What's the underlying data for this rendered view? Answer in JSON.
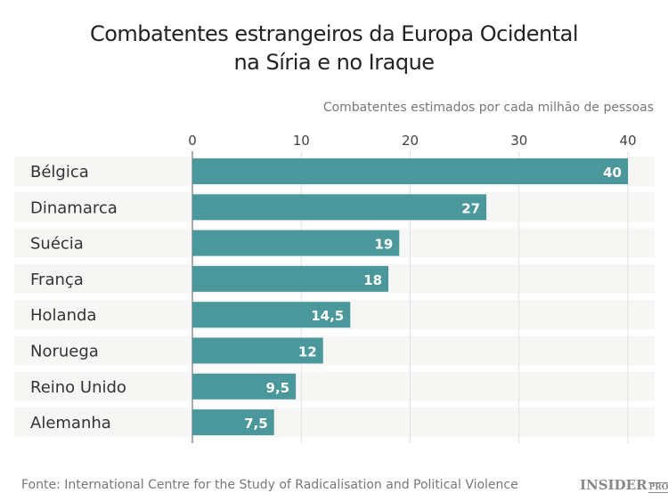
{
  "chart_data": {
    "type": "bar",
    "orientation": "horizontal",
    "title": "Combatentes estrangeiros da Europa Ocidental na Síria e no Iraque",
    "title_lines": [
      "Combatentes estrangeiros da Europa Ocidental",
      "na Síria e no Iraque"
    ],
    "xlabel": "Combatentes estimados por cada milhão de pessoas",
    "categories": [
      "Bélgica",
      "Dinamarca",
      "Suécia",
      "França",
      "Holanda",
      "Noruega",
      "Reino Unido",
      "Alemanha"
    ],
    "values": [
      40,
      27,
      19,
      18,
      14.5,
      12,
      9.5,
      7.5
    ],
    "value_labels": [
      "40",
      "27",
      "19",
      "18",
      "14,5",
      "12",
      "9,5",
      "7,5"
    ],
    "xticks": [
      0,
      10,
      20,
      30,
      40
    ],
    "xlim": [
      0,
      42
    ],
    "grid": true,
    "bar_color": "#4a989c"
  },
  "footer": {
    "source": "Fonte: International Centre for the Study of Radicalisation and Political Violence",
    "logo": "INSIDER",
    "logo_suffix": "PRO"
  }
}
